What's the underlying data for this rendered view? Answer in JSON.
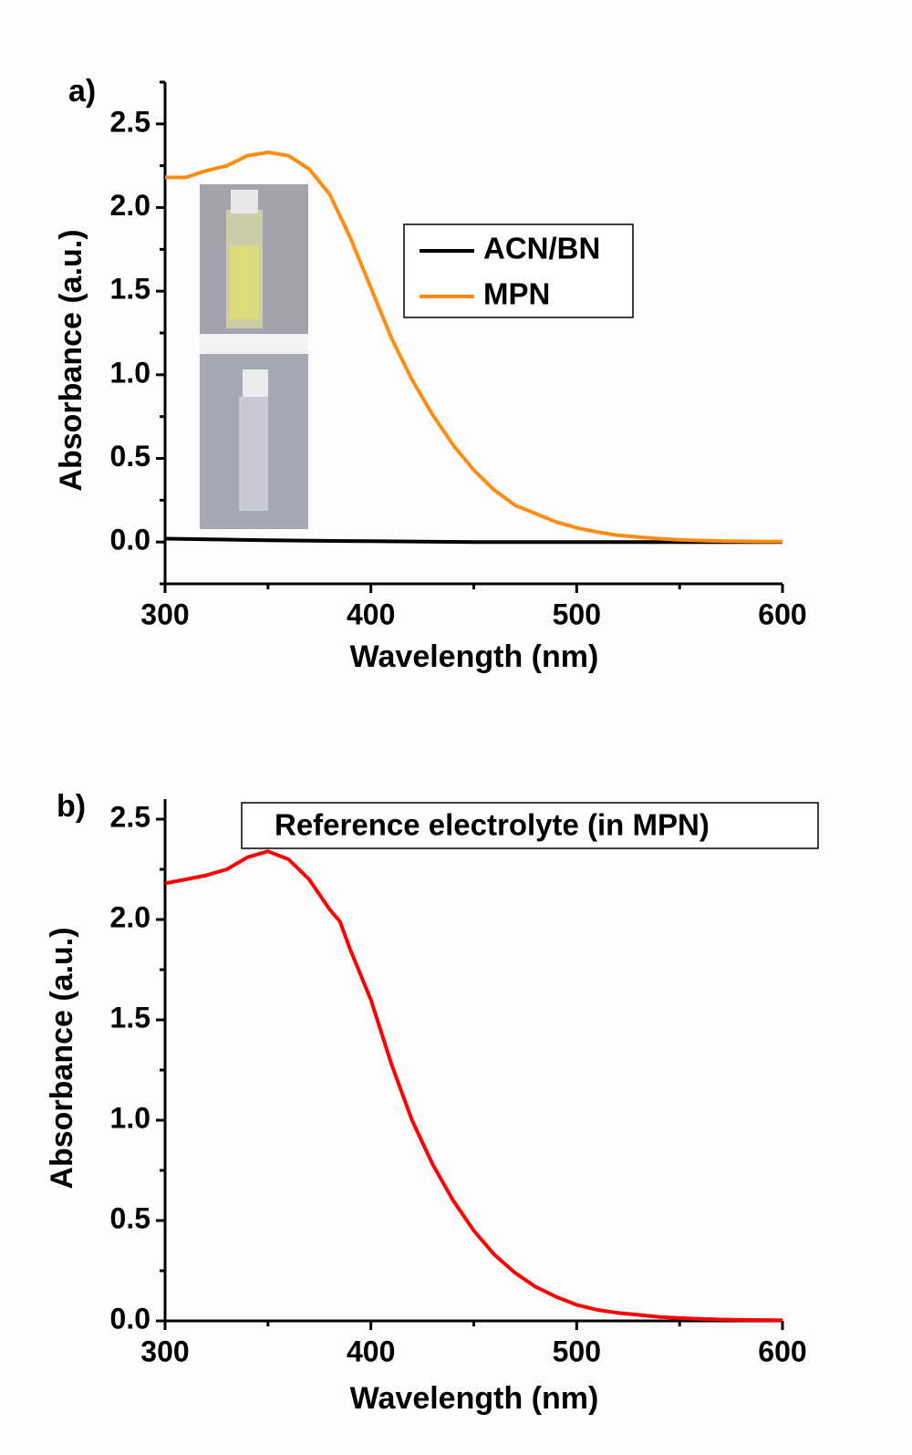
{
  "chart_data": [
    {
      "type": "line",
      "panel_label": "a)",
      "xlabel": "Wavelength (nm)",
      "ylabel": "Absorbance (a.u.)",
      "xlim": [
        300,
        600
      ],
      "xticks": [
        300,
        400,
        500,
        600
      ],
      "x_minor_ticks": [
        350,
        450,
        550
      ],
      "ylim": [
        -0.25,
        2.75
      ],
      "yticks": [
        {
          "value": 0,
          "label": "0.0"
        },
        0.5,
        {
          "value": 1,
          "label": "1.0"
        },
        1.5,
        {
          "value": 2,
          "label": "2.0"
        },
        2.5
      ],
      "y_minor_ticks": [
        -0.25,
        0.25,
        0.75,
        1.25,
        1.75,
        2.25,
        2.75
      ],
      "legend": "upper right",
      "series": [
        {
          "name": "ACN/BN",
          "color": "#000000",
          "x": [
            300,
            350,
            400,
            450,
            500,
            550,
            600
          ],
          "values": [
            0.02,
            0.01,
            0.005,
            0,
            0,
            0,
            0
          ]
        },
        {
          "name": "MPN",
          "color": "#ff8c10",
          "x": [
            300,
            310,
            320,
            330,
            340,
            350,
            360,
            370,
            380,
            390,
            400,
            410,
            420,
            430,
            440,
            450,
            460,
            470,
            480,
            490,
            500,
            510,
            520,
            530,
            540,
            550,
            560,
            570,
            580,
            590,
            600
          ],
          "values": [
            2.18,
            2.18,
            2.22,
            2.25,
            2.31,
            2.33,
            2.31,
            2.23,
            2.08,
            1.82,
            1.52,
            1.22,
            0.97,
            0.76,
            0.58,
            0.43,
            0.31,
            0.22,
            0.17,
            0.12,
            0.085,
            0.06,
            0.04,
            0.03,
            0.02,
            0.013,
            0.009,
            0.006,
            0.004,
            0.003,
            0.003
          ]
        }
      ]
    },
    {
      "type": "line",
      "panel_label": "b)",
      "xlabel": "Wavelength (nm)",
      "ylabel": "Absorbance (a.u.)",
      "xlim": [
        300,
        600
      ],
      "xticks": [
        300,
        400,
        500,
        600
      ],
      "x_minor_ticks": [
        350,
        450,
        550
      ],
      "ylim": [
        0,
        2.6
      ],
      "yticks": [
        {
          "value": 0,
          "label": "0.0"
        },
        0.5,
        {
          "value": 1,
          "label": "1.0"
        },
        1.5,
        {
          "value": 2,
          "label": "2.0"
        },
        2.5
      ],
      "y_minor_ticks": [
        0.25,
        0.75,
        1.25,
        1.75,
        2.25
      ],
      "legend": "upper right",
      "series": [
        {
          "name": "Reference electrolyte (in MPN)",
          "color": "#ff0000",
          "x": [
            300,
            310,
            320,
            330,
            340,
            350,
            360,
            370,
            380,
            385,
            390,
            400,
            410,
            420,
            430,
            440,
            450,
            460,
            470,
            480,
            490,
            500,
            510,
            520,
            530,
            540,
            550,
            560,
            570,
            580,
            590,
            600
          ],
          "values": [
            2.18,
            2.2,
            2.22,
            2.25,
            2.31,
            2.34,
            2.3,
            2.2,
            2.05,
            1.99,
            1.85,
            1.6,
            1.28,
            1.0,
            0.78,
            0.6,
            0.45,
            0.33,
            0.24,
            0.17,
            0.12,
            0.08,
            0.055,
            0.04,
            0.03,
            0.02,
            0.014,
            0.01,
            0.007,
            0.005,
            0.004,
            0.003
          ]
        }
      ]
    }
  ]
}
